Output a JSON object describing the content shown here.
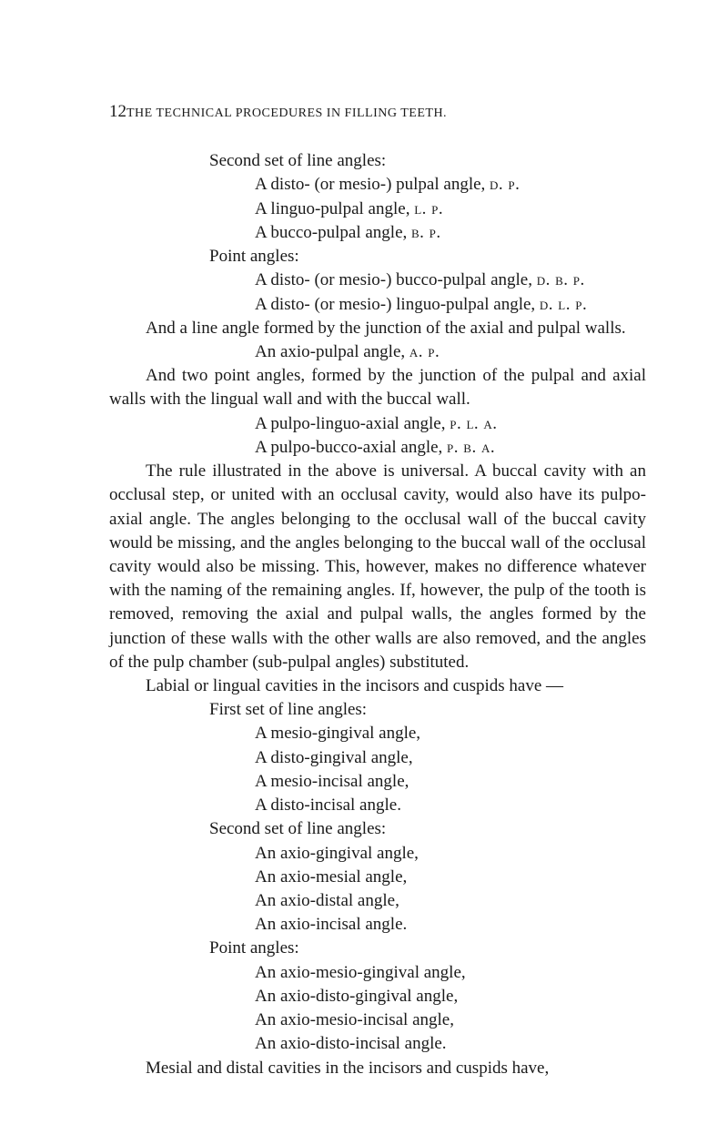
{
  "header": {
    "page_number": "12",
    "running_title": "THE TECHNICAL PROCEDURES IN FILLING TEETH."
  },
  "block1": {
    "l1": "Second set of line angles:",
    "l2_a": "A disto- (or mesio-) pulpal angle, ",
    "l2_sc": "d. p.",
    "l3_a": "A linguo-pulpal angle, ",
    "l3_sc": "l. p.",
    "l4_a": "A bucco-pulpal angle, ",
    "l4_sc": "b. p.",
    "l5": "Point angles:",
    "l6_a": "A disto- (or mesio-) bucco-pulpal angle, ",
    "l6_sc": "d. b. p.",
    "l7_a": "A disto- (or mesio-) linguo-pulpal angle, ",
    "l7_sc": "d. l. p."
  },
  "para1": "And a line angle formed by the junction of the axial and pulpal walls.",
  "line_axio_a": "An axio-pulpal angle, ",
  "line_axio_sc": "a. p.",
  "para2": "And two point angles, formed by the junction of the pulpal and axial walls with the lingual wall and with the buccal wall.",
  "line_pla_a": "A pulpo-linguo-axial angle, ",
  "line_pla_sc": "p. l. a.",
  "line_pba_a": "A pulpo-bucco-axial angle, ",
  "line_pba_sc": "p. b. a.",
  "para3": "The rule illustrated in the above is universal. A buccal cavity with an occlusal step, or united with an occlusal cavity, would also have its pulpo-axial angle. The angles belonging to the occlusal wall of the buccal cavity would be missing, and the angles belonging to the buccal wall of the occlusal cavity would also be missing. This, however, makes no difference what­ever with the naming of the remaining angles. If, however, the pulp of the tooth is removed, removing the axial and pulpal walls, the angles formed by the junction of these walls with the other walls are also removed, and the angles of the pulp chamber (sub-pulpal angles) substituted.",
  "para4": "Labial or lingual cavities in the incisors and cuspids have —",
  "block2": {
    "l1": "First set of line angles:",
    "l2": "A mesio-gingival angle,",
    "l3": "A disto-gingival angle,",
    "l4": "A mesio-incisal angle,",
    "l5": "A disto-incisal angle.",
    "l6": "Second set of line angles:",
    "l7": "An axio-gingival angle,",
    "l8": "An axio-mesial angle,",
    "l9": "An axio-distal angle,",
    "l10": "An axio-incisal angle.",
    "l11": "Point angles:",
    "l12": "An axio-mesio-gingival angle,",
    "l13": "An axio-disto-gingival angle,",
    "l14": "An axio-mesio-incisal angle,",
    "l15": "An axio-disto-incisal angle."
  },
  "para5": "Mesial and distal cavities in the incisors and cuspids have,"
}
